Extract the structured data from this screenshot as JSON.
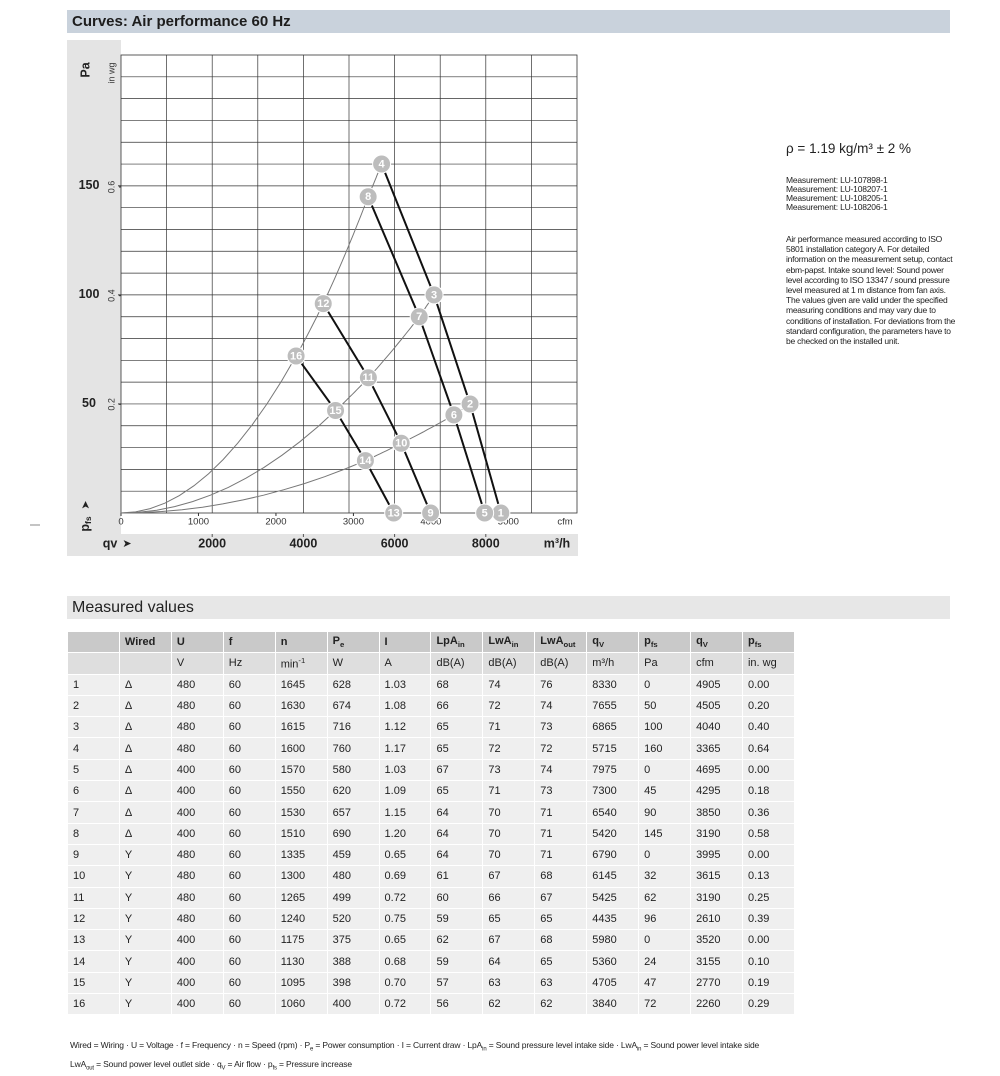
{
  "header": {
    "title": "Curves: Air performance 60 Hz"
  },
  "chart": {
    "y_label": "Pa",
    "y2_label": "in wg",
    "y_arrow_label": {
      "text": "p",
      "sub": "fs"
    },
    "x_label": "qv",
    "x_unit": "m³/h",
    "x2_unit": "cfm",
    "xlim": [
      0,
      10000
    ],
    "xticks": [
      2000,
      4000,
      6000,
      8000
    ],
    "x2lim": [
      0,
      5886
    ],
    "x2ticks": [
      0,
      1000,
      2000,
      3000,
      4000,
      5000
    ],
    "ylim": [
      0,
      210
    ],
    "yticks": [
      50,
      100,
      150
    ],
    "y2lim": [
      0,
      0.843
    ],
    "y2ticks": [
      0.2,
      0.4,
      0.6
    ]
  },
  "side": {
    "density": "ρ = 1.19 kg/m³ ± 2 %",
    "measurements": [
      "Measurement: LU-107898-1",
      "Measurement: LU-108207-1",
      "Measurement: LU-108205-1",
      "Measurement: LU-108206-1"
    ],
    "note": "Air performance measured according to ISO 5801 installation category A. For detailed information on the measurement setup, contact ebm-papst. Intake sound level: Sound power level according to ISO 13347 / sound pressure level measured at 1 m distance from fan axis. The values given are valid under the specified measuring conditions and may vary due to conditions of installation. For deviations from the standard configuration, the parameters have to be checked on the installed unit."
  },
  "section": {
    "title": "Measured values"
  },
  "table": {
    "header": [
      [
        null,
        "Wired",
        "U",
        "f",
        "n",
        {
          "text": "P",
          "sub": "e"
        },
        "I",
        {
          "text": "LpA",
          "sub": "in"
        },
        {
          "text": "LwA",
          "sub": "in"
        },
        {
          "text": "LwA",
          "sub": "out"
        },
        {
          "text": "q",
          "sub": "V"
        },
        {
          "text": "p",
          "sub": "fs"
        },
        {
          "text": "q",
          "sub": "V"
        },
        {
          "text": "p",
          "sub": "fs"
        }
      ],
      [
        null,
        null,
        "V",
        "Hz",
        {
          "text": "min",
          "sup": "-1"
        },
        "W",
        "A",
        "dB(A)",
        "dB(A)",
        "dB(A)",
        "m³/h",
        "Pa",
        "cfm",
        "in. wg"
      ]
    ],
    "rows": [
      [
        "1",
        "Δ",
        "480",
        "60",
        "1645",
        "628",
        "1.03",
        "68",
        "74",
        "76",
        "8330",
        "0",
        "4905",
        "0.00"
      ],
      [
        "2",
        "Δ",
        "480",
        "60",
        "1630",
        "674",
        "1.08",
        "66",
        "72",
        "74",
        "7655",
        "50",
        "4505",
        "0.20"
      ],
      [
        "3",
        "Δ",
        "480",
        "60",
        "1615",
        "716",
        "1.12",
        "65",
        "71",
        "73",
        "6865",
        "100",
        "4040",
        "0.40"
      ],
      [
        "4",
        "Δ",
        "480",
        "60",
        "1600",
        "760",
        "1.17",
        "65",
        "72",
        "72",
        "5715",
        "160",
        "3365",
        "0.64"
      ],
      [
        "5",
        "Δ",
        "400",
        "60",
        "1570",
        "580",
        "1.03",
        "67",
        "73",
        "74",
        "7975",
        "0",
        "4695",
        "0.00"
      ],
      [
        "6",
        "Δ",
        "400",
        "60",
        "1550",
        "620",
        "1.09",
        "65",
        "71",
        "73",
        "7300",
        "45",
        "4295",
        "0.18"
      ],
      [
        "7",
        "Δ",
        "400",
        "60",
        "1530",
        "657",
        "1.15",
        "64",
        "70",
        "71",
        "6540",
        "90",
        "3850",
        "0.36"
      ],
      [
        "8",
        "Δ",
        "400",
        "60",
        "1510",
        "690",
        "1.20",
        "64",
        "70",
        "71",
        "5420",
        "145",
        "3190",
        "0.58"
      ],
      [
        "9",
        "Y",
        "480",
        "60",
        "1335",
        "459",
        "0.65",
        "64",
        "70",
        "71",
        "6790",
        "0",
        "3995",
        "0.00"
      ],
      [
        "10",
        "Y",
        "480",
        "60",
        "1300",
        "480",
        "0.69",
        "61",
        "67",
        "68",
        "6145",
        "32",
        "3615",
        "0.13"
      ],
      [
        "11",
        "Y",
        "480",
        "60",
        "1265",
        "499",
        "0.72",
        "60",
        "66",
        "67",
        "5425",
        "62",
        "3190",
        "0.25"
      ],
      [
        "12",
        "Y",
        "480",
        "60",
        "1240",
        "520",
        "0.75",
        "59",
        "65",
        "65",
        "4435",
        "96",
        "2610",
        "0.39"
      ],
      [
        "13",
        "Y",
        "400",
        "60",
        "1175",
        "375",
        "0.65",
        "62",
        "67",
        "68",
        "5980",
        "0",
        "3520",
        "0.00"
      ],
      [
        "14",
        "Y",
        "400",
        "60",
        "1130",
        "388",
        "0.68",
        "59",
        "64",
        "65",
        "5360",
        "24",
        "3155",
        "0.10"
      ],
      [
        "15",
        "Y",
        "400",
        "60",
        "1095",
        "398",
        "0.70",
        "57",
        "63",
        "63",
        "4705",
        "47",
        "2770",
        "0.19"
      ],
      [
        "16",
        "Y",
        "400",
        "60",
        "1060",
        "400",
        "0.72",
        "56",
        "62",
        "62",
        "3840",
        "72",
        "2260",
        "0.29"
      ]
    ]
  },
  "footnote": [
    [
      {
        "text": "Wired = Wiring · U = Voltage · f = Frequency · n = Speed (rpm) · P"
      },
      {
        "sub": "e"
      },
      {
        "text": " = Power consumption · I = Current draw · LpA"
      },
      {
        "sub": "in"
      },
      {
        "text": " = Sound pressure level intake side · LwA"
      },
      {
        "sub": "in"
      },
      {
        "text": " = Sound power level intake side"
      }
    ],
    [
      {
        "text": "LwA"
      },
      {
        "sub": "out"
      },
      {
        "text": " = Sound power level outlet side · q"
      },
      {
        "sub": "V"
      },
      {
        "text": " = Air flow · p"
      },
      {
        "sub": "fs"
      },
      {
        "text": " = Pressure increase"
      }
    ]
  ]
}
